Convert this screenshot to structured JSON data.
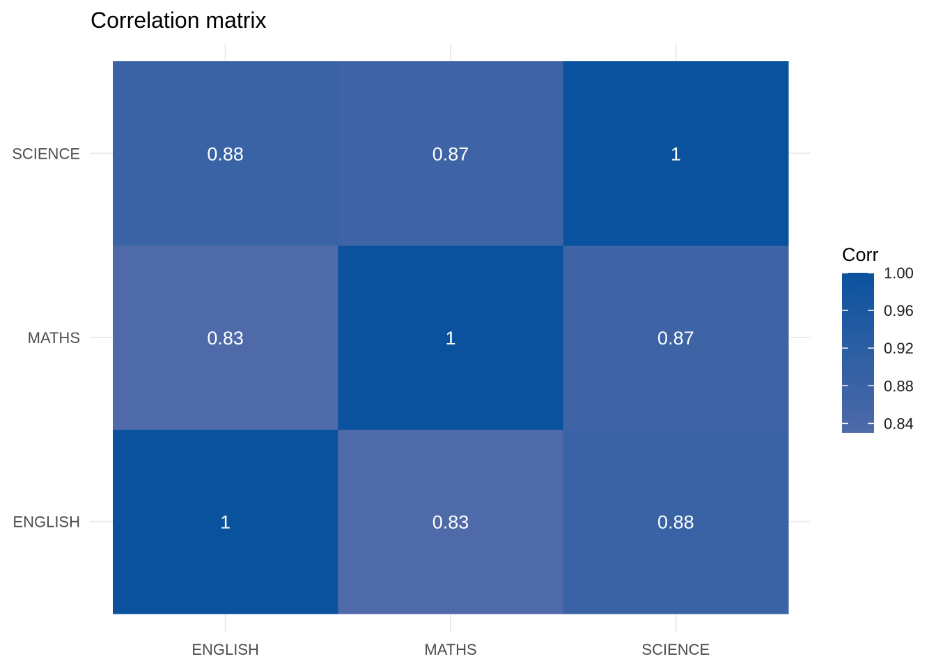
{
  "chart_data": {
    "type": "heatmap",
    "title": "Correlation matrix",
    "xlabel": "",
    "ylabel": "",
    "x_categories": [
      "ENGLISH",
      "MATHS",
      "SCIENCE"
    ],
    "y_categories": [
      "ENGLISH",
      "MATHS",
      "SCIENCE"
    ],
    "cells": [
      {
        "x": "ENGLISH",
        "y": "ENGLISH",
        "value": 1.0,
        "label": "1"
      },
      {
        "x": "MATHS",
        "y": "ENGLISH",
        "value": 0.83,
        "label": "0.83"
      },
      {
        "x": "SCIENCE",
        "y": "ENGLISH",
        "value": 0.88,
        "label": "0.88"
      },
      {
        "x": "ENGLISH",
        "y": "MATHS",
        "value": 0.83,
        "label": "0.83"
      },
      {
        "x": "MATHS",
        "y": "MATHS",
        "value": 1.0,
        "label": "1"
      },
      {
        "x": "SCIENCE",
        "y": "MATHS",
        "value": 0.87,
        "label": "0.87"
      },
      {
        "x": "ENGLISH",
        "y": "SCIENCE",
        "value": 0.88,
        "label": "0.88"
      },
      {
        "x": "MATHS",
        "y": "SCIENCE",
        "value": 0.87,
        "label": "0.87"
      },
      {
        "x": "SCIENCE",
        "y": "SCIENCE",
        "value": 1.0,
        "label": "1"
      }
    ],
    "legend": {
      "title": "Corr",
      "position": "right",
      "range": [
        0.83,
        1.0
      ],
      "ticks": [
        0.84,
        0.88,
        0.92,
        0.96,
        1.0
      ],
      "tick_labels": [
        "0.84",
        "0.88",
        "0.92",
        "0.96",
        "1.00"
      ],
      "color_low": "#4e6aa9",
      "color_high": "#0b529e"
    },
    "grid": true
  }
}
